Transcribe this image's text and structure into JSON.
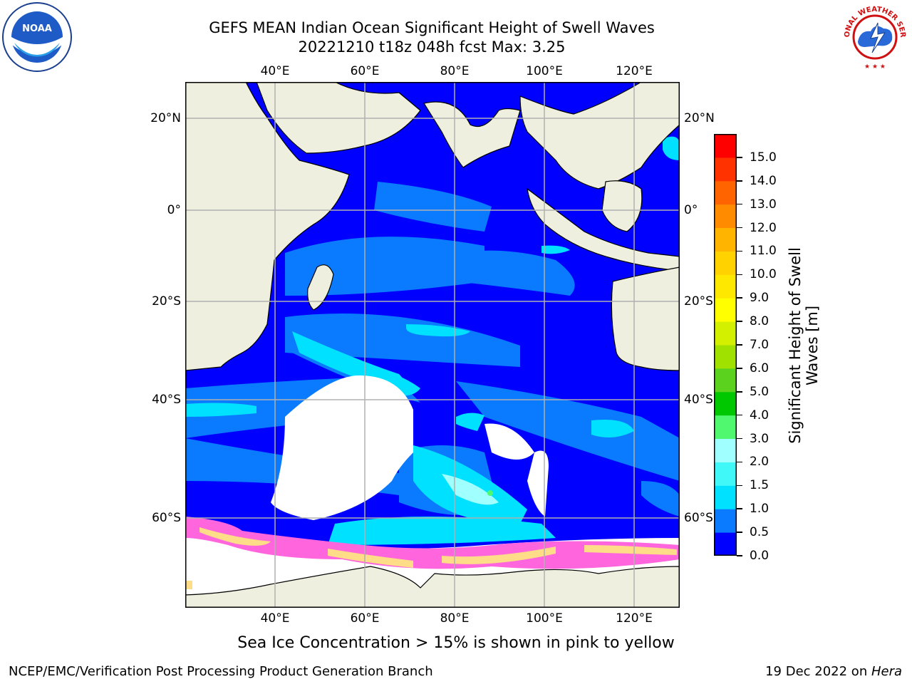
{
  "title": {
    "line1": "GEFS MEAN Indian Ocean Significant Height of Swell Waves",
    "line2": "20221210 t18z 048h fcst   Max: 3.25"
  },
  "longitude_labels": [
    "40°E",
    "60°E",
    "80°E",
    "100°E",
    "120°E"
  ],
  "latitude_labels": [
    "20°N",
    "0°",
    "20°S",
    "40°S",
    "60°S"
  ],
  "colorbar": {
    "label_line1": "Significant Height of Swell",
    "label_line2": "Waves [m]",
    "ticks": [
      "0.0",
      "0.5",
      "1.0",
      "1.5",
      "2.0",
      "3.0",
      "4.0",
      "5.0",
      "6.0",
      "7.0",
      "8.0",
      "9.0",
      "10.0",
      "11.0",
      "12.0",
      "13.0",
      "14.0",
      "15.0"
    ],
    "colors": [
      "#0000ff",
      "#0a7bff",
      "#00e0ff",
      "#40f8f8",
      "#a0ffff",
      "#50f870",
      "#00c800",
      "#5ad21e",
      "#a0e100",
      "#d2f000",
      "#ffff00",
      "#ffe800",
      "#ffd200",
      "#ffb400",
      "#ff8c00",
      "#ff6400",
      "#ff3200",
      "#ff0000"
    ]
  },
  "caption": "Sea Ice Concentration > 15% is shown in pink to yellow",
  "footer": {
    "left": "NCEP/EMC/Verification Post Processing Product Generation Branch",
    "right_date": "19 Dec 2022 on ",
    "right_host": "Hera"
  },
  "logos": {
    "noaa_text": "NOAA",
    "nws_text": "NATIONAL WEATHER SERVICE"
  },
  "map_colors": {
    "land": "#efefdf",
    "ocean_low": "#0000ff",
    "ocean_mid": "#0a7bff",
    "ocean_high": "#00e0ff",
    "ocean_peak": "#a0ffff",
    "ice_pink": "#ff66dd",
    "ice_yellow": "#ffdd88",
    "grid": "#b0b0b0"
  }
}
